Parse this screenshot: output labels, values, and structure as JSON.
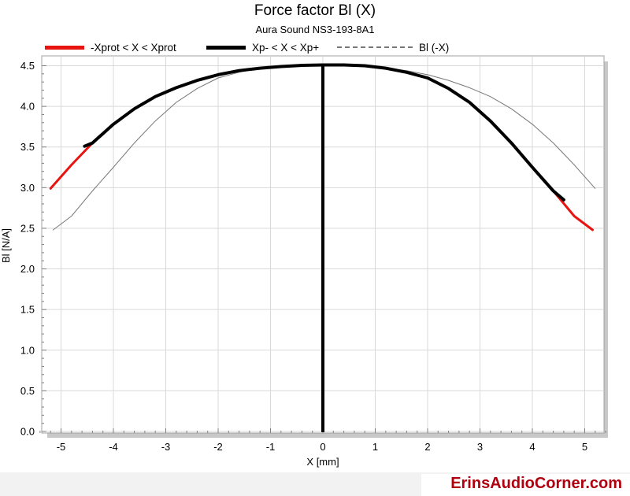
{
  "chart_data": {
    "type": "line",
    "title": "Force factor Bl (X)",
    "subtitle": "Aura Sound NS3-193-8A1",
    "xlabel": "X [mm]",
    "ylabel": "Bl [N/A]",
    "xlim": [
      -5.5,
      5.5
    ],
    "ylim": [
      0,
      4.6
    ],
    "xticks": [
      -5,
      -4,
      -3,
      -2,
      -1,
      0,
      1,
      2,
      3,
      4,
      5
    ],
    "yticks": [
      0.0,
      0.5,
      1.0,
      1.5,
      2.0,
      2.5,
      3.0,
      3.5,
      4.0,
      4.5
    ],
    "ytick_labels": [
      "0.0",
      "0.5",
      "1.0",
      "1.5",
      "2.0",
      "2.5",
      "3.0",
      "3.5",
      "4.0",
      "4.5"
    ],
    "grid": true,
    "legend_position": "top",
    "vertical_marker_x": 0,
    "series": [
      {
        "name": "-Xprot < X < Xprot",
        "color": "#e8140f",
        "x": [
          -5.2,
          -4.8,
          -4.4,
          -4.0,
          -3.6,
          -3.2,
          -2.8,
          -2.4,
          -2.0,
          -1.6,
          -1.2,
          -0.8,
          -0.4,
          0.0,
          0.4,
          0.8,
          1.2,
          1.6,
          2.0,
          2.4,
          2.8,
          3.2,
          3.6,
          4.0,
          4.4,
          4.8,
          5.15
        ],
        "y": [
          2.99,
          3.28,
          3.55,
          3.78,
          3.97,
          4.12,
          4.23,
          4.32,
          4.39,
          4.44,
          4.47,
          4.49,
          4.505,
          4.51,
          4.51,
          4.5,
          4.47,
          4.42,
          4.35,
          4.22,
          4.05,
          3.82,
          3.55,
          3.25,
          2.96,
          2.65,
          2.48
        ]
      },
      {
        "name": "Xp- < X < Xp+",
        "color": "#000000",
        "x": [
          -4.55,
          -4.4,
          -4.0,
          -3.6,
          -3.2,
          -2.8,
          -2.4,
          -2.0,
          -1.6,
          -1.2,
          -0.8,
          -0.4,
          0.0,
          0.4,
          0.8,
          1.2,
          1.6,
          2.0,
          2.4,
          2.8,
          3.2,
          3.6,
          4.0,
          4.4,
          4.6
        ],
        "y": [
          3.51,
          3.55,
          3.78,
          3.97,
          4.12,
          4.23,
          4.32,
          4.39,
          4.44,
          4.47,
          4.49,
          4.505,
          4.51,
          4.51,
          4.5,
          4.47,
          4.42,
          4.35,
          4.22,
          4.05,
          3.82,
          3.55,
          3.25,
          2.96,
          2.85
        ]
      },
      {
        "name": "Bl (-X)",
        "color": "#777777",
        "x": [
          -5.15,
          -4.8,
          -4.4,
          -4.0,
          -3.6,
          -3.2,
          -2.8,
          -2.4,
          -2.0,
          -1.6,
          -1.2,
          -0.8,
          -0.4,
          0.0,
          0.4,
          0.8,
          1.2,
          1.6,
          2.0,
          2.4,
          2.8,
          3.2,
          3.6,
          4.0,
          4.4,
          4.8,
          5.2
        ],
        "y": [
          2.48,
          2.65,
          2.96,
          3.25,
          3.55,
          3.82,
          4.05,
          4.22,
          4.35,
          4.42,
          4.47,
          4.5,
          4.51,
          4.51,
          4.505,
          4.49,
          4.47,
          4.44,
          4.39,
          4.32,
          4.23,
          4.12,
          3.97,
          3.78,
          3.55,
          3.28,
          2.99
        ]
      }
    ]
  },
  "footer": {
    "brand": "ErinsAudioCorner.com",
    "brand_color": "#b0000f"
  }
}
